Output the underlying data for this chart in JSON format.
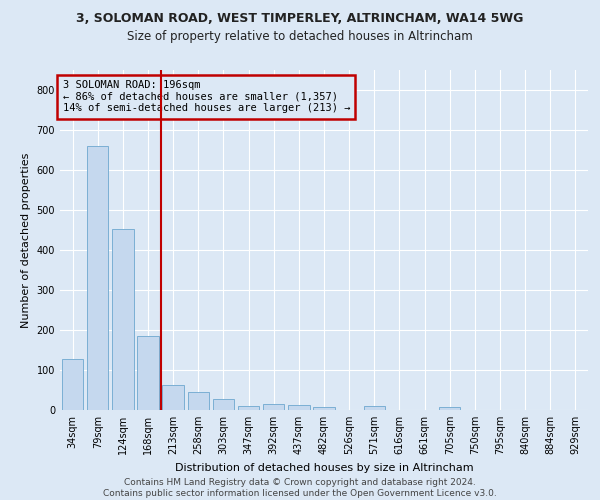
{
  "title1": "3, SOLOMAN ROAD, WEST TIMPERLEY, ALTRINCHAM, WA14 5WG",
  "title2": "Size of property relative to detached houses in Altrincham",
  "xlabel": "Distribution of detached houses by size in Altrincham",
  "ylabel": "Number of detached properties",
  "footer": "Contains HM Land Registry data © Crown copyright and database right 2024.\nContains public sector information licensed under the Open Government Licence v3.0.",
  "bin_labels": [
    "34sqm",
    "79sqm",
    "124sqm",
    "168sqm",
    "213sqm",
    "258sqm",
    "303sqm",
    "347sqm",
    "392sqm",
    "437sqm",
    "482sqm",
    "526sqm",
    "571sqm",
    "616sqm",
    "661sqm",
    "705sqm",
    "750sqm",
    "795sqm",
    "840sqm",
    "884sqm",
    "929sqm"
  ],
  "bar_values": [
    128,
    660,
    453,
    185,
    62,
    46,
    27,
    11,
    15,
    12,
    7,
    0,
    9,
    0,
    0,
    8,
    0,
    0,
    0,
    0,
    0
  ],
  "bar_color": "#c5d8ee",
  "bar_edge_color": "#7bafd4",
  "vline_color": "#c00000",
  "annotation_text": "3 SOLOMAN ROAD: 196sqm\n← 86% of detached houses are smaller (1,357)\n14% of semi-detached houses are larger (213) →",
  "annotation_box_color": "#c00000",
  "ylim": [
    0,
    850
  ],
  "yticks": [
    0,
    100,
    200,
    300,
    400,
    500,
    600,
    700,
    800
  ],
  "background_color": "#dce8f5",
  "grid_color": "#ffffff",
  "vline_bin_index": 4,
  "title1_fontsize": 9.0,
  "title2_fontsize": 8.5,
  "ylabel_fontsize": 8.0,
  "xlabel_fontsize": 8.0,
  "tick_fontsize": 7.0,
  "footer_fontsize": 6.5,
  "ann_fontsize": 7.5
}
